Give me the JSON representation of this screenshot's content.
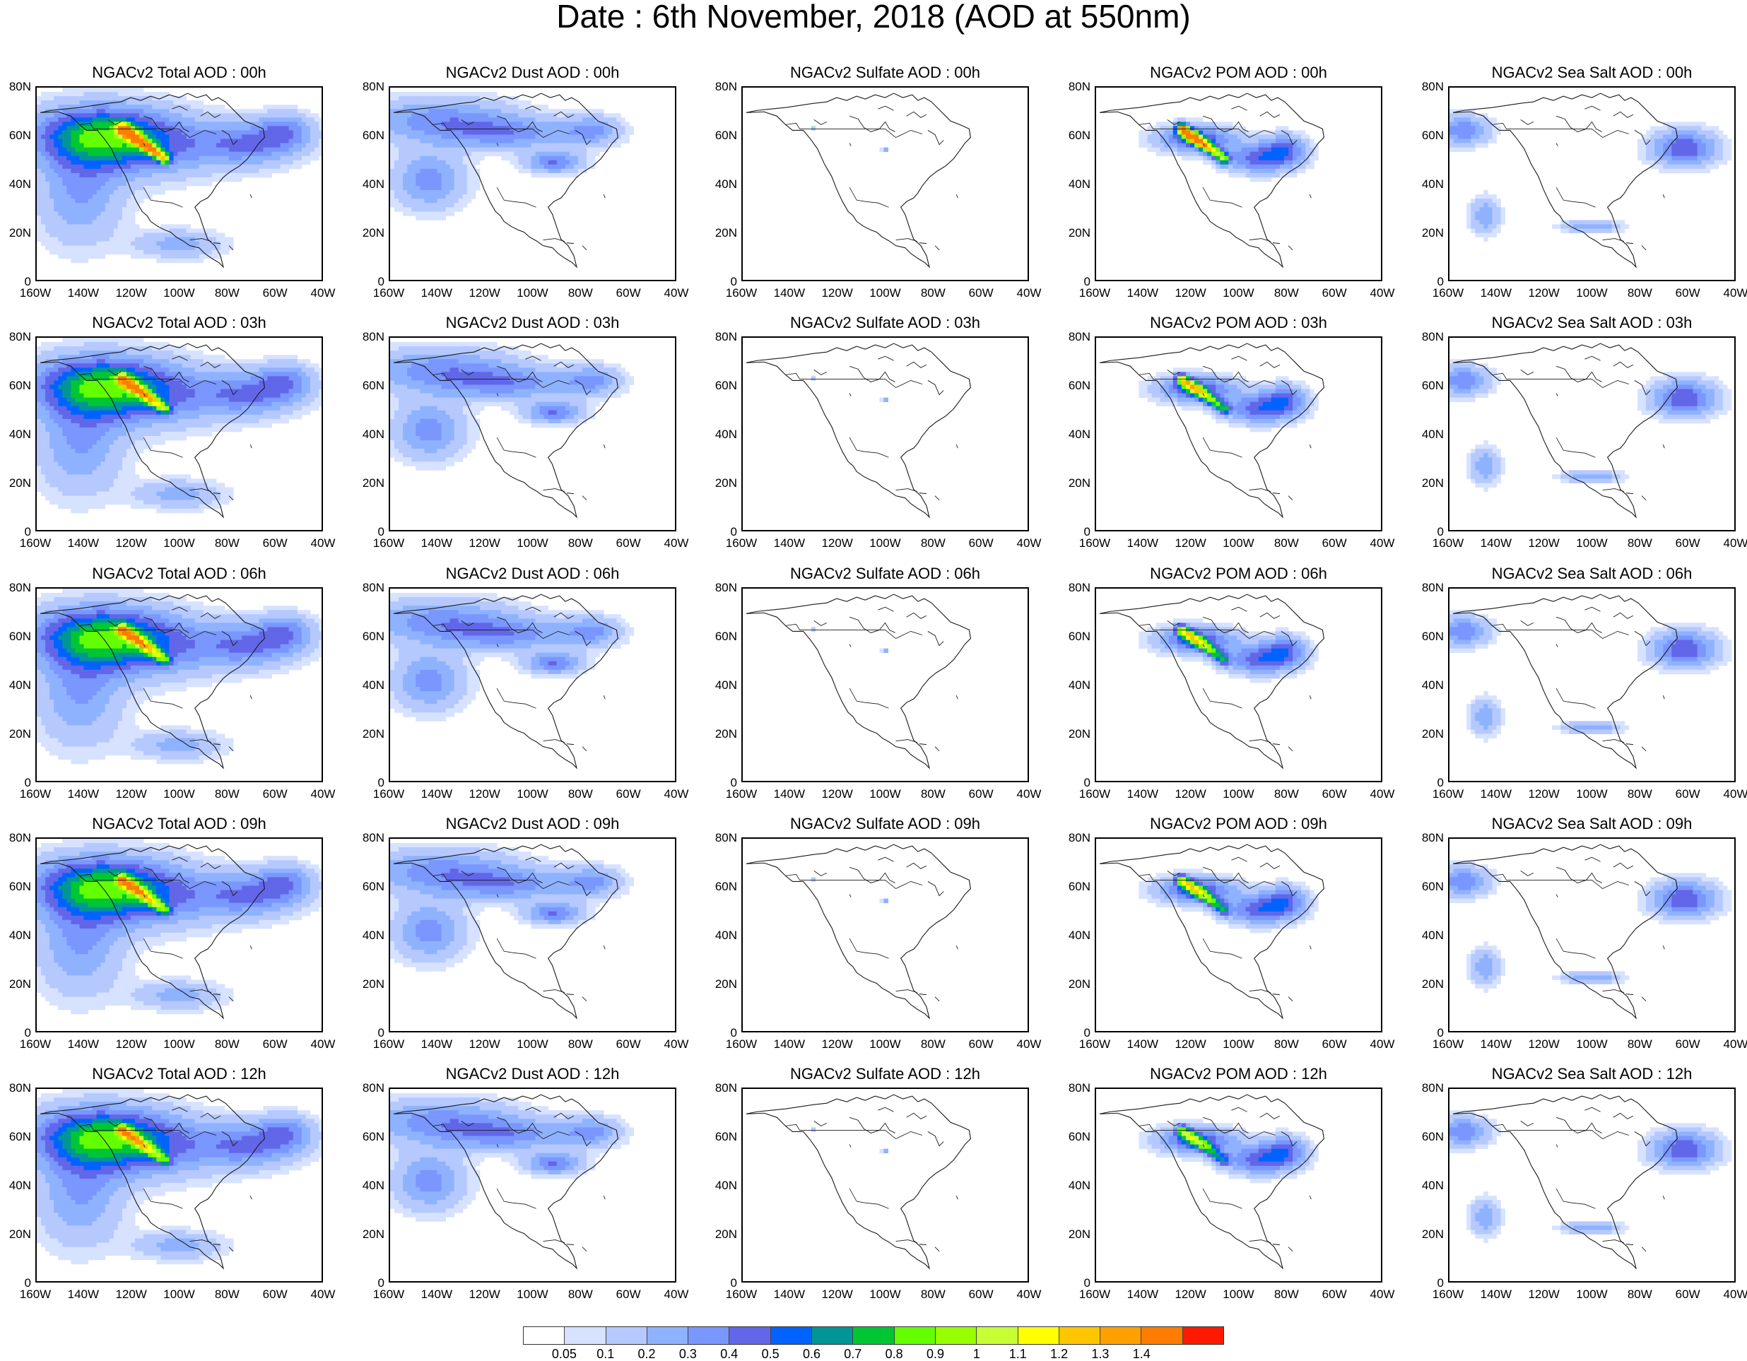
{
  "title": "Date : 6th November, 2018 (AOD at 550nm)",
  "panels": [
    [
      "NGACv2 Total AOD : 00h",
      "NGACv2 Dust AOD : 00h",
      "NGACv2 Sulfate AOD : 00h",
      "NGACv2 POM AOD : 00h",
      "NGACv2 Sea Salt AOD : 00h"
    ],
    [
      "NGACv2 Total AOD : 03h",
      "NGACv2 Dust AOD : 03h",
      "NGACv2 Sulfate AOD : 03h",
      "NGACv2 POM AOD : 03h",
      "NGACv2 Sea Salt AOD : 03h"
    ],
    [
      "NGACv2 Total AOD : 06h",
      "NGACv2 Dust AOD : 06h",
      "NGACv2 Sulfate AOD : 06h",
      "NGACv2 POM AOD : 06h",
      "NGACv2 Sea Salt AOD : 06h"
    ],
    [
      "NGACv2 Total AOD : 09h",
      "NGACv2 Dust AOD : 09h",
      "NGACv2 Sulfate AOD : 09h",
      "NGACv2 POM AOD : 09h",
      "NGACv2 Sea Salt  AOD : 09h"
    ],
    [
      "NGACv2 Total AOD  : 12h",
      "NGACv2 Dust AOD : 12h",
      "NGACv2 Sulfate AOD : 12h",
      "NGACv2 POM  AOD : 12h",
      "NGACv2 Sea Salt  AOD : 12h"
    ]
  ],
  "lat_ticks": [
    "80N",
    "60N",
    "40N",
    "20N",
    "0"
  ],
  "lon_ticks": [
    "160W",
    "140W",
    "120W",
    "100W",
    "80W",
    "60W",
    "40W"
  ],
  "colorbar": {
    "colors": [
      "#ffffff",
      "#d6e2ff",
      "#b5c9ff",
      "#8fb2ff",
      "#7a96ff",
      "#6167e8",
      "#0063ff",
      "#009696",
      "#00c634",
      "#63ff00",
      "#96ff00",
      "#c6ff33",
      "#ffff00",
      "#ffc600",
      "#ffa000",
      "#ff7c00",
      "#ff1900"
    ],
    "labels": [
      "0.05",
      "0.1",
      "0.2",
      "0.3",
      "0.4",
      "0.5",
      "0.6",
      "0.7",
      "0.8",
      "0.9",
      "1",
      "1.1",
      "1.2",
      "1.3",
      "1.4"
    ]
  }
}
